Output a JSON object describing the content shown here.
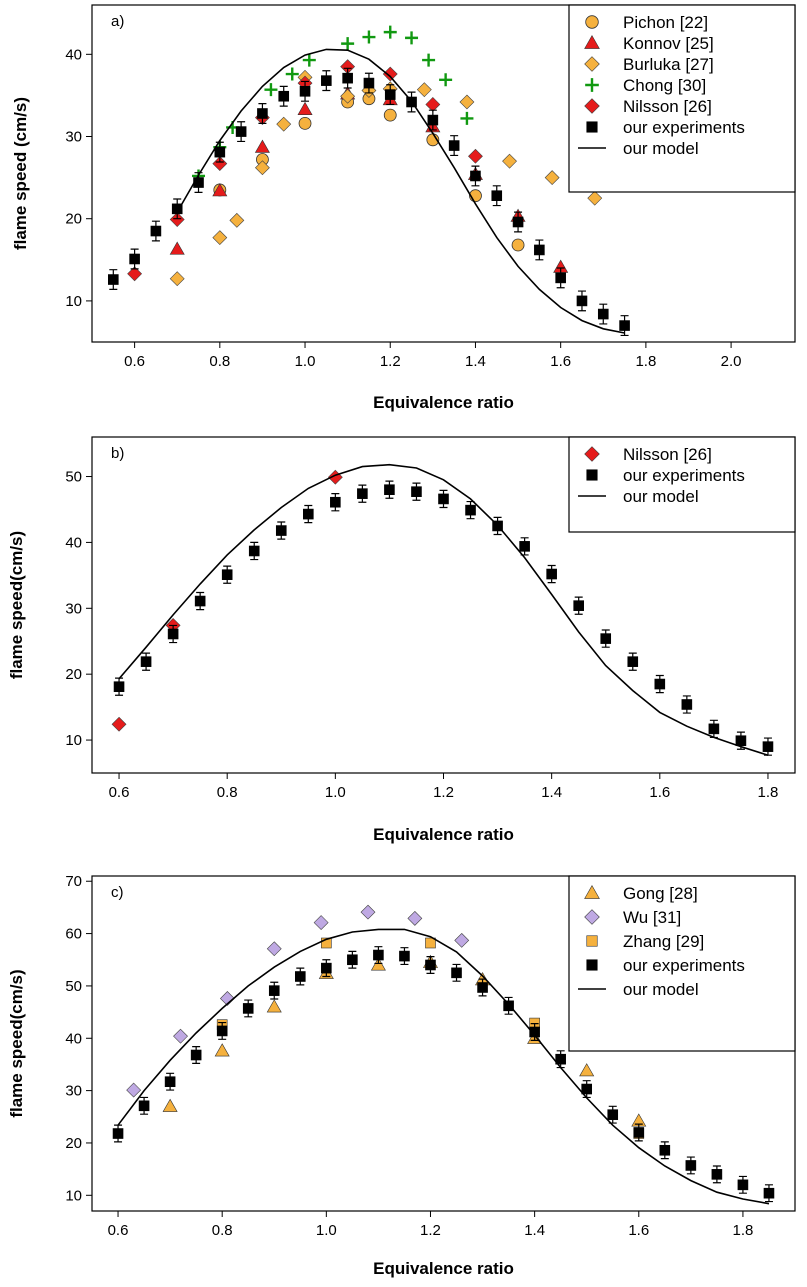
{
  "colors": {
    "orange": "#F5B13E",
    "red": "#E51B1B",
    "green": "#119911",
    "black": "#000000",
    "purple": "#BFA9E3"
  },
  "chart_data": [
    {
      "type": "scatter",
      "panel_label": "a)",
      "xlabel": "Equivalence ratio",
      "ylabel": "flame speed (cm/s)",
      "xlim": [
        0.5,
        2.15
      ],
      "ylim": [
        5,
        46
      ],
      "xticks": [
        "0.6",
        "0.8",
        "1.0",
        "1.2",
        "1.4",
        "1.6",
        "1.8",
        "2.0"
      ],
      "yticks": [
        "10",
        "20",
        "30",
        "40"
      ],
      "legend_position": "top-right",
      "series": [
        {
          "name": "Pichon [22]",
          "marker": "circle",
          "color": "#F5B13E",
          "x": [
            0.8,
            0.9,
            1.0,
            1.1,
            1.15,
            1.2,
            1.3,
            1.4,
            1.5
          ],
          "y": [
            23.5,
            27.2,
            31.6,
            34.2,
            34.6,
            32.6,
            29.6,
            22.8,
            16.8
          ]
        },
        {
          "name": "Konnov [25]",
          "marker": "triangle",
          "color": "#E51B1B",
          "x": [
            0.7,
            0.8,
            0.9,
            1.0,
            1.1,
            1.2,
            1.3,
            1.4,
            1.5,
            1.6
          ],
          "y": [
            16.3,
            23.4,
            28.7,
            33.3,
            35.2,
            34.5,
            31.2,
            25.4,
            20.3,
            14.1
          ]
        },
        {
          "name": "Burluka [27]",
          "marker": "diamond",
          "color": "#F5B13E",
          "x": [
            0.7,
            0.8,
            0.84,
            0.9,
            0.95,
            1.0,
            1.1,
            1.15,
            1.2,
            1.28,
            1.38,
            1.48,
            1.58,
            1.68
          ],
          "y": [
            12.7,
            17.7,
            19.8,
            26.2,
            31.5,
            37.2,
            34.9,
            35.6,
            35.8,
            35.7,
            34.2,
            27.0,
            25.0,
            22.5
          ]
        },
        {
          "name": "Chong [30]",
          "marker": "plus",
          "color": "#119911",
          "x": [
            0.75,
            0.8,
            0.83,
            0.92,
            0.97,
            1.01,
            1.1,
            1.15,
            1.2,
            1.25,
            1.29,
            1.33,
            1.38
          ],
          "y": [
            25.2,
            28.7,
            31.1,
            35.7,
            37.6,
            39.3,
            41.3,
            42.1,
            42.7,
            42.0,
            39.3,
            36.9,
            32.2
          ]
        },
        {
          "name": "Nilsson [26]",
          "marker": "diamond",
          "color": "#E51B1B",
          "x": [
            0.6,
            0.7,
            0.8,
            0.9,
            1.0,
            1.1,
            1.2,
            1.3,
            1.4
          ],
          "y": [
            13.3,
            19.9,
            26.7,
            32.3,
            36.5,
            38.5,
            37.6,
            33.9,
            27.6
          ]
        },
        {
          "name": "our experiments",
          "marker": "square",
          "color": "#000000",
          "errorbar": 1.2,
          "x": [
            0.55,
            0.6,
            0.65,
            0.7,
            0.75,
            0.8,
            0.85,
            0.9,
            0.95,
            1.0,
            1.05,
            1.1,
            1.15,
            1.2,
            1.25,
            1.3,
            1.35,
            1.4,
            1.45,
            1.5,
            1.55,
            1.6,
            1.65,
            1.7,
            1.75
          ],
          "y": [
            12.6,
            15.1,
            18.5,
            21.2,
            24.4,
            28.1,
            30.6,
            32.8,
            34.9,
            35.5,
            36.8,
            37.1,
            36.5,
            35.1,
            34.2,
            32.0,
            28.9,
            25.2,
            22.8,
            19.6,
            16.2,
            12.8,
            10.0,
            8.4,
            7.0
          ]
        },
        {
          "name": "our model",
          "marker": "line",
          "color": "#000000",
          "x": [
            0.7,
            0.75,
            0.8,
            0.85,
            0.9,
            0.95,
            1.0,
            1.05,
            1.1,
            1.15,
            1.2,
            1.25,
            1.3,
            1.35,
            1.4,
            1.45,
            1.5,
            1.55,
            1.6,
            1.65,
            1.7,
            1.75
          ],
          "y": [
            20.8,
            25.3,
            29.5,
            33.1,
            36.1,
            38.4,
            39.9,
            40.6,
            40.5,
            39.4,
            37.3,
            34.3,
            30.4,
            26.2,
            21.8,
            17.7,
            14.2,
            11.4,
            9.2,
            7.6,
            6.6,
            6.1
          ]
        }
      ]
    },
    {
      "type": "scatter",
      "panel_label": "b)",
      "xlabel": "Equivalence ratio",
      "ylabel": "flame speed(cm/s)",
      "xlim": [
        0.55,
        1.85
      ],
      "ylim": [
        5,
        56
      ],
      "xticks": [
        "0.6",
        "0.8",
        "1.0",
        "1.2",
        "1.4",
        "1.6",
        "1.8"
      ],
      "yticks": [
        "10",
        "20",
        "30",
        "40",
        "50"
      ],
      "legend_position": "top-right",
      "series": [
        {
          "name": "Nilsson [26]",
          "marker": "diamond",
          "color": "#E51B1B",
          "x": [
            0.6,
            0.7,
            1.0
          ],
          "y": [
            12.4,
            27.4,
            49.9
          ]
        },
        {
          "name": "our experiments",
          "marker": "square",
          "color": "#000000",
          "errorbar": 1.3,
          "x": [
            0.6,
            0.65,
            0.7,
            0.75,
            0.8,
            0.85,
            0.9,
            0.95,
            1.0,
            1.05,
            1.1,
            1.15,
            1.2,
            1.25,
            1.3,
            1.35,
            1.4,
            1.45,
            1.5,
            1.55,
            1.6,
            1.65,
            1.7,
            1.75,
            1.8
          ],
          "y": [
            18.1,
            21.9,
            26.1,
            31.1,
            35.1,
            38.7,
            41.8,
            44.3,
            46.1,
            47.4,
            48.0,
            47.7,
            46.6,
            44.9,
            42.5,
            39.4,
            35.2,
            30.4,
            25.4,
            21.9,
            18.5,
            15.4,
            11.7,
            9.9,
            9.0
          ]
        },
        {
          "name": "our model",
          "marker": "line",
          "color": "#000000",
          "x": [
            0.6,
            0.65,
            0.7,
            0.75,
            0.8,
            0.85,
            0.9,
            0.95,
            1.0,
            1.05,
            1.1,
            1.15,
            1.2,
            1.25,
            1.3,
            1.35,
            1.4,
            1.45,
            1.5,
            1.55,
            1.6,
            1.65,
            1.7,
            1.75,
            1.8
          ],
          "y": [
            19.3,
            24.1,
            29.0,
            33.7,
            38.1,
            41.9,
            45.3,
            48.2,
            50.2,
            51.5,
            51.8,
            51.3,
            49.5,
            46.6,
            42.6,
            37.7,
            32.1,
            26.4,
            21.3,
            17.5,
            14.2,
            12.1,
            10.4,
            9.0,
            7.7
          ]
        }
      ]
    },
    {
      "type": "scatter",
      "panel_label": "c)",
      "xlabel": "Equivalence ratio",
      "ylabel": "flame speed(cm/s)",
      "xlim": [
        0.55,
        1.9
      ],
      "ylim": [
        7,
        71
      ],
      "xticks": [
        "0.6",
        "0.8",
        "1.0",
        "1.2",
        "1.4",
        "1.6",
        "1.8"
      ],
      "yticks": [
        "10",
        "20",
        "30",
        "40",
        "50",
        "60",
        "70"
      ],
      "legend_position": "top-right",
      "series": [
        {
          "name": "Gong [28]",
          "marker": "triangle",
          "color": "#F5B13E",
          "x": [
            0.7,
            0.8,
            0.9,
            1.0,
            1.1,
            1.2,
            1.3,
            1.4,
            1.5,
            1.6
          ],
          "y": [
            27.0,
            37.6,
            46.0,
            52.4,
            54.0,
            54.5,
            51.2,
            40.0,
            33.8,
            24.2
          ]
        },
        {
          "name": "Wu [31]",
          "marker": "diamond",
          "color": "#BFA9E3",
          "x": [
            0.63,
            0.72,
            0.81,
            0.9,
            0.99,
            1.08,
            1.17,
            1.26
          ],
          "y": [
            30.1,
            40.4,
            47.6,
            57.1,
            62.1,
            64.1,
            62.9,
            58.7
          ]
        },
        {
          "name": "Zhang [29]",
          "marker": "square",
          "color": "#F5B13E",
          "x": [
            0.8,
            1.0,
            1.2,
            1.4,
            1.6
          ],
          "y": [
            42.6,
            58.2,
            58.2,
            42.9,
            21.8
          ]
        },
        {
          "name": "our experiments",
          "marker": "square",
          "color": "#000000",
          "errorbar": 1.6,
          "x": [
            0.6,
            0.65,
            0.7,
            0.75,
            0.8,
            0.85,
            0.9,
            0.95,
            1.0,
            1.05,
            1.1,
            1.15,
            1.2,
            1.25,
            1.3,
            1.35,
            1.4,
            1.45,
            1.5,
            1.55,
            1.6,
            1.65,
            1.7,
            1.75,
            1.8,
            1.85
          ],
          "y": [
            21.8,
            27.1,
            31.7,
            36.8,
            41.4,
            45.7,
            49.1,
            51.8,
            53.4,
            55.0,
            55.9,
            55.7,
            54.0,
            52.5,
            49.7,
            46.2,
            41.2,
            36.0,
            30.3,
            25.4,
            22.0,
            18.6,
            15.7,
            14.0,
            12.0,
            10.4
          ]
        },
        {
          "name": "our model",
          "marker": "line",
          "color": "#000000",
          "x": [
            0.6,
            0.65,
            0.7,
            0.75,
            0.8,
            0.85,
            0.9,
            0.95,
            1.0,
            1.05,
            1.1,
            1.15,
            1.2,
            1.25,
            1.3,
            1.35,
            1.4,
            1.45,
            1.5,
            1.55,
            1.6,
            1.65,
            1.7,
            1.75,
            1.8,
            1.85
          ],
          "y": [
            23.4,
            30.0,
            35.8,
            41.0,
            45.7,
            50.0,
            53.6,
            56.6,
            58.9,
            60.3,
            60.8,
            60.8,
            59.4,
            56.5,
            51.9,
            46.5,
            40.6,
            34.4,
            28.6,
            23.4,
            19.1,
            15.6,
            12.8,
            10.6,
            9.3,
            8.4
          ]
        }
      ]
    }
  ]
}
